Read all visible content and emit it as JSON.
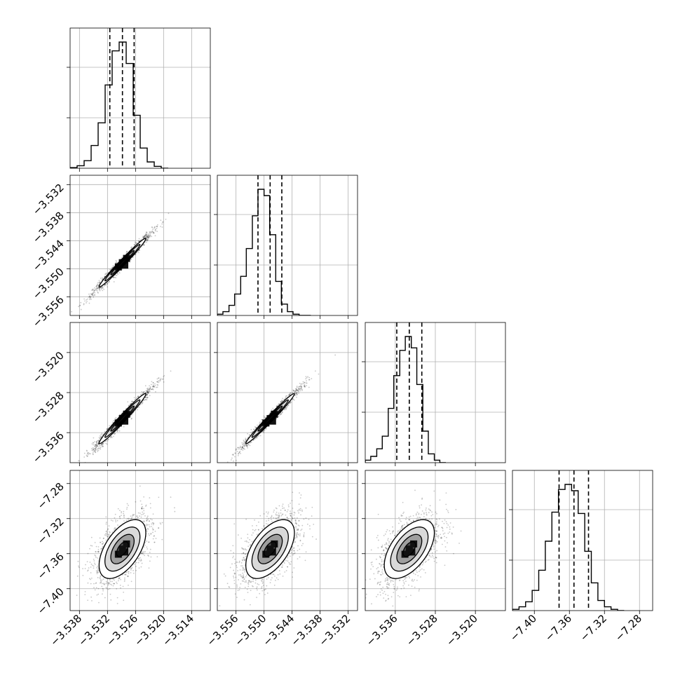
{
  "chart_data": {
    "type": "corner",
    "grid": true,
    "n_params": 4,
    "axes": [
      {
        "range": [
          -3.54,
          -3.51
        ],
        "ticks": [
          -3.538,
          -3.532,
          -3.526,
          -3.52,
          -3.514
        ],
        "tick_labels": [
          "−3.538",
          "−3.532",
          "−3.526",
          "−3.520",
          "−3.514"
        ]
      },
      {
        "range": [
          -3.56,
          -3.53
        ],
        "ticks": [
          -3.556,
          -3.55,
          -3.544,
          -3.538,
          -3.532
        ],
        "tick_labels": [
          "−3.556",
          "−3.550",
          "−3.544",
          "−3.538",
          "−3.532"
        ]
      },
      {
        "range": [
          -3.542,
          -3.514
        ],
        "ticks": [
          -3.536,
          -3.528,
          -3.52
        ],
        "tick_labels": [
          "−3.536",
          "−3.528",
          "−3.520"
        ]
      },
      {
        "range": [
          -7.425,
          -7.265
        ],
        "ticks": [
          -7.4,
          -7.36,
          -7.32,
          -7.28
        ],
        "tick_labels": [
          "−7.40",
          "−7.36",
          "−7.32",
          "−7.28"
        ]
      }
    ],
    "marginals": [
      {
        "quantiles": [
          -3.5315,
          -3.5288,
          -3.5263
        ],
        "bins": [
          -3.54,
          -3.5385,
          -3.537,
          -3.5355,
          -3.534,
          -3.5325,
          -3.531,
          -3.5295,
          -3.528,
          -3.5265,
          -3.525,
          -3.5235,
          -3.522,
          -3.5205,
          -3.519
        ],
        "counts": [
          0.005,
          0.02,
          0.06,
          0.18,
          0.36,
          0.66,
          0.93,
          1.0,
          0.83,
          0.42,
          0.16,
          0.05,
          0.015,
          0.0
        ]
      },
      {
        "quantiles": [
          -3.5513,
          -3.5487,
          -3.5462
        ],
        "bins": [
          -3.56,
          -3.5588,
          -3.5575,
          -3.5563,
          -3.555,
          -3.5538,
          -3.5525,
          -3.5513,
          -3.55,
          -3.5488,
          -3.5475,
          -3.5463,
          -3.545,
          -3.5438,
          -3.5425,
          -3.5413,
          -3.54
        ],
        "counts": [
          0.01,
          0.03,
          0.08,
          0.17,
          0.31,
          0.53,
          0.79,
          1.0,
          0.95,
          0.64,
          0.27,
          0.09,
          0.03,
          0.01,
          0.0,
          0.0
        ]
      },
      {
        "quantiles": [
          -3.5357,
          -3.5332,
          -3.5307
        ],
        "bins": [
          -3.542,
          -3.5409,
          -3.5397,
          -3.5386,
          -3.5374,
          -3.5363,
          -3.5351,
          -3.534,
          -3.5328,
          -3.5317,
          -3.5305,
          -3.5294,
          -3.5282,
          -3.5271,
          -3.5259
        ],
        "counts": [
          0.02,
          0.05,
          0.11,
          0.21,
          0.43,
          0.69,
          0.89,
          1.0,
          0.91,
          0.62,
          0.25,
          0.07,
          0.02,
          0.0
        ]
      },
      {
        "quantiles": [
          -7.3718,
          -7.3548,
          -7.3382
        ],
        "bins": [
          -7.425,
          -7.4175,
          -7.41,
          -7.4025,
          -7.395,
          -7.3875,
          -7.38,
          -7.3725,
          -7.365,
          -7.3575,
          -7.35,
          -7.3425,
          -7.335,
          -7.3275,
          -7.32,
          -7.3125,
          -7.305,
          -7.2975
        ],
        "counts": [
          0.01,
          0.03,
          0.07,
          0.16,
          0.32,
          0.55,
          0.78,
          0.96,
          1.0,
          0.95,
          0.77,
          0.47,
          0.22,
          0.08,
          0.03,
          0.01,
          0.0
        ]
      }
    ],
    "pairs": [
      {
        "x": 0,
        "y": 1,
        "center": [
          -3.5288,
          -3.5487
        ],
        "sigma": [
          0.0025,
          0.0026
        ],
        "rho": 0.985
      },
      {
        "x": 0,
        "y": 2,
        "center": [
          -3.5288,
          -3.5332
        ],
        "sigma": [
          0.0025,
          0.0025
        ],
        "rho": 0.98
      },
      {
        "x": 1,
        "y": 2,
        "center": [
          -3.5487,
          -3.5332
        ],
        "sigma": [
          0.0026,
          0.0025
        ],
        "rho": 0.985
      },
      {
        "x": 0,
        "y": 3,
        "center": [
          -3.5288,
          -7.3548
        ],
        "sigma": [
          0.0025,
          0.0168
        ],
        "rho": 0.55
      },
      {
        "x": 1,
        "y": 3,
        "center": [
          -3.5487,
          -7.3548
        ],
        "sigma": [
          0.0026,
          0.0168
        ],
        "rho": 0.55
      },
      {
        "x": 2,
        "y": 3,
        "center": [
          -3.5332,
          -7.3548
        ],
        "sigma": [
          0.0025,
          0.0168
        ],
        "rho": 0.55
      }
    ],
    "contour_levels_sigma": [
      0.5,
      1.0,
      1.5,
      2.0
    ]
  }
}
